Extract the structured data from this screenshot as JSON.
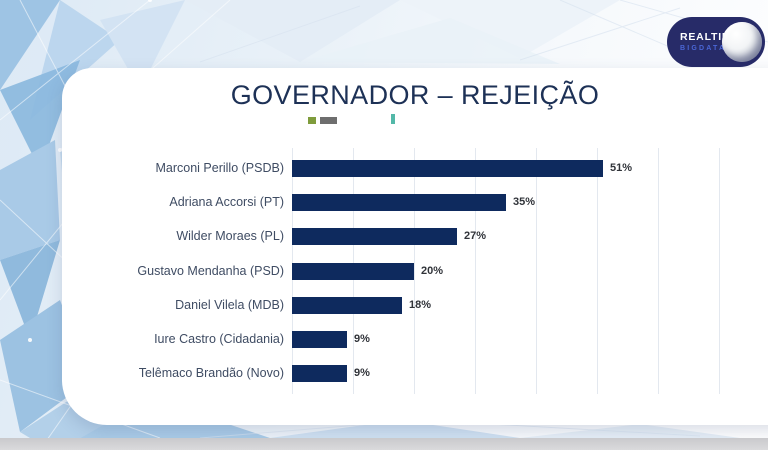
{
  "header": {
    "title": "GOVERNADOR – REJEIÇÃO"
  },
  "logo": {
    "brand_top": "REALTIME",
    "brand_bottom": "BIGDATA",
    "pill_color": "#272b68",
    "brand_bottom_color": "#4a66d6"
  },
  "legend": {
    "items": [
      {
        "name": "legend-marker-green",
        "color": "#7f9c3c"
      },
      {
        "name": "legend-marker-gray",
        "color": "#6e6e6e"
      },
      {
        "name": "legend-marker-teal",
        "color": "#53b8a8"
      }
    ]
  },
  "chart_data": {
    "type": "bar",
    "orientation": "horizontal",
    "title": "GOVERNADOR – REJEIÇÃO",
    "categories": [
      "Marconi Perillo (PSDB)",
      "Adriana Accorsi (PT)",
      "Wilder Moraes (PL)",
      "Gustavo Mendanha (PSD)",
      "Daniel Vilela (MDB)",
      "Iure Castro (Cidadania)",
      "Telêmaco Brandão (Novo)"
    ],
    "values": [
      51,
      35,
      27,
      20,
      18,
      9,
      9
    ],
    "value_labels": [
      "51%",
      "35%",
      "27%",
      "20%",
      "18%",
      "9%",
      "9%"
    ],
    "xlabel": "",
    "ylabel": "",
    "xlim": [
      0,
      80
    ],
    "grid": true,
    "grid_step_pct": 10,
    "bar_color": "#0e2a5e",
    "label_color": "#3f4c63",
    "value_color": "#303339",
    "gridline_color": "#e3e8ef"
  },
  "colors": {
    "card_bg": "#ffffff",
    "title_color": "#1d3156",
    "bottom_strip": "#d6d6d8"
  }
}
